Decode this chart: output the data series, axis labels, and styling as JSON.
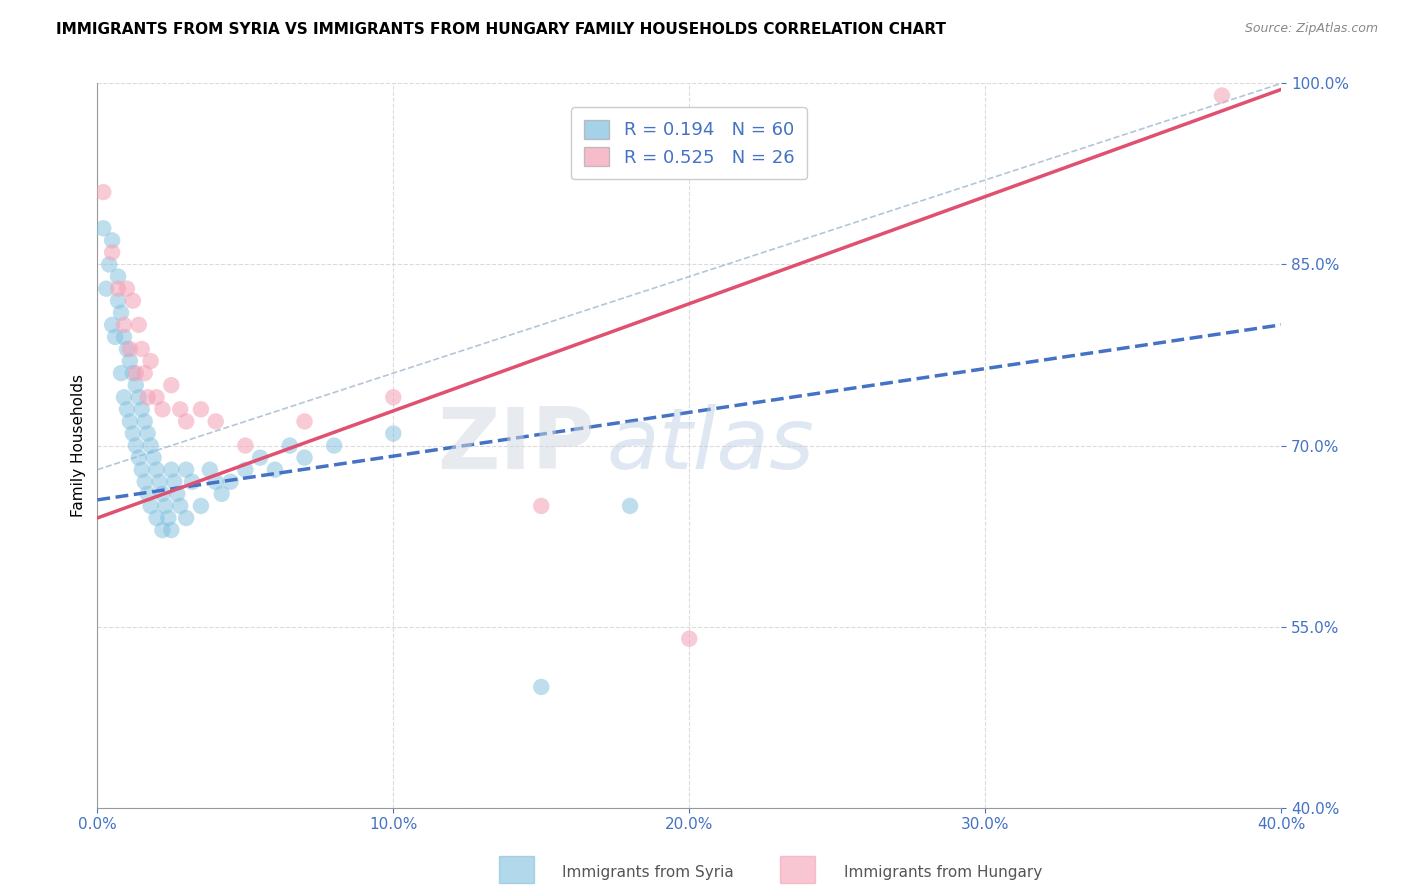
{
  "title": "IMMIGRANTS FROM SYRIA VS IMMIGRANTS FROM HUNGARY FAMILY HOUSEHOLDS CORRELATION CHART",
  "source": "Source: ZipAtlas.com",
  "ylabel": "Family Households",
  "legend_label_syria": "Immigrants from Syria",
  "legend_label_hungary": "Immigrants from Hungary",
  "r_syria": 0.194,
  "n_syria": 60,
  "r_hungary": 0.525,
  "n_hungary": 26,
  "xlim": [
    0.0,
    0.4
  ],
  "ylim": [
    0.4,
    1.0
  ],
  "xtick_labels": [
    "0.0%",
    "10.0%",
    "20.0%",
    "30.0%",
    "40.0%"
  ],
  "xtick_vals": [
    0.0,
    0.1,
    0.2,
    0.3,
    0.4
  ],
  "ytick_labels": [
    "40.0%",
    "55.0%",
    "70.0%",
    "85.0%",
    "100.0%"
  ],
  "ytick_vals": [
    0.4,
    0.55,
    0.7,
    0.85,
    1.0
  ],
  "color_syria": "#7fbfdf",
  "color_hungary": "#f4a0b5",
  "color_syria_line": "#4472c4",
  "color_hungary_line": "#e05070",
  "color_ref_line": "#a0b8d0",
  "syria_x": [
    0.002,
    0.003,
    0.004,
    0.005,
    0.005,
    0.006,
    0.007,
    0.007,
    0.008,
    0.008,
    0.009,
    0.009,
    0.01,
    0.01,
    0.011,
    0.011,
    0.012,
    0.012,
    0.013,
    0.013,
    0.014,
    0.014,
    0.015,
    0.015,
    0.016,
    0.016,
    0.017,
    0.017,
    0.018,
    0.018,
    0.019,
    0.02,
    0.02,
    0.021,
    0.022,
    0.022,
    0.023,
    0.024,
    0.025,
    0.025,
    0.026,
    0.027,
    0.028,
    0.03,
    0.03,
    0.032,
    0.035,
    0.038,
    0.04,
    0.042,
    0.045,
    0.05,
    0.055,
    0.06,
    0.065,
    0.07,
    0.08,
    0.1,
    0.15,
    0.18
  ],
  "syria_y": [
    0.88,
    0.83,
    0.85,
    0.8,
    0.87,
    0.79,
    0.82,
    0.84,
    0.81,
    0.76,
    0.79,
    0.74,
    0.78,
    0.73,
    0.77,
    0.72,
    0.76,
    0.71,
    0.75,
    0.7,
    0.74,
    0.69,
    0.73,
    0.68,
    0.72,
    0.67,
    0.71,
    0.66,
    0.7,
    0.65,
    0.69,
    0.68,
    0.64,
    0.67,
    0.66,
    0.63,
    0.65,
    0.64,
    0.68,
    0.63,
    0.67,
    0.66,
    0.65,
    0.68,
    0.64,
    0.67,
    0.65,
    0.68,
    0.67,
    0.66,
    0.67,
    0.68,
    0.69,
    0.68,
    0.7,
    0.69,
    0.7,
    0.71,
    0.5,
    0.65
  ],
  "hungary_x": [
    0.002,
    0.005,
    0.007,
    0.009,
    0.01,
    0.011,
    0.012,
    0.013,
    0.014,
    0.015,
    0.016,
    0.017,
    0.018,
    0.02,
    0.022,
    0.025,
    0.028,
    0.03,
    0.035,
    0.04,
    0.05,
    0.07,
    0.1,
    0.15,
    0.2,
    0.38
  ],
  "hungary_y": [
    0.91,
    0.86,
    0.83,
    0.8,
    0.83,
    0.78,
    0.82,
    0.76,
    0.8,
    0.78,
    0.76,
    0.74,
    0.77,
    0.74,
    0.73,
    0.75,
    0.73,
    0.72,
    0.73,
    0.72,
    0.7,
    0.72,
    0.74,
    0.65,
    0.54,
    0.99
  ],
  "line_syria_x0": 0.0,
  "line_syria_y0": 0.655,
  "line_syria_x1": 0.4,
  "line_syria_y1": 0.8,
  "line_hungary_x0": 0.0,
  "line_hungary_y0": 0.64,
  "line_hungary_x1": 0.4,
  "line_hungary_y1": 0.995,
  "ref_line_x0": 0.0,
  "ref_line_y0": 0.68,
  "ref_line_x1": 0.4,
  "ref_line_y1": 1.0,
  "watermark_zip": "ZIP",
  "watermark_atlas": "atlas",
  "background_color": "#ffffff",
  "grid_color": "#cccccc",
  "title_fontsize": 11,
  "axis_label_fontsize": 11,
  "tick_fontsize": 11,
  "legend_fontsize": 13,
  "tick_color": "#4472c4"
}
